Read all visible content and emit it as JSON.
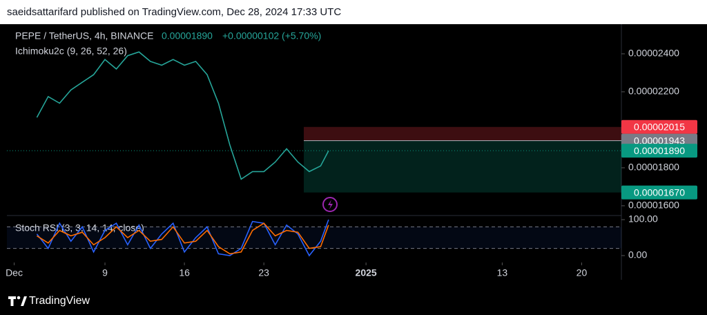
{
  "header": "saeidsattarifard published on TradingView.com, Dec 28, 2024 17:33 UTC",
  "footer": {
    "brand": "TradingView"
  },
  "chart_data": [
    {
      "type": "line",
      "title": "PEPE / TetherUS, 4h, BINANCE",
      "last": "0.00001890",
      "change": "+0.00000102 (+5.70%)",
      "indicator": "Ichimoku2c (9, 26, 52, 26)",
      "x": [
        3,
        4,
        5,
        6,
        7,
        8,
        9,
        10,
        11,
        12,
        13,
        14,
        15,
        16,
        17,
        18,
        19,
        20,
        21,
        22,
        23,
        24,
        25,
        26,
        27,
        28,
        28.7
      ],
      "series": [
        {
          "color": "#26a69a",
          "values": [
            2.065e-05,
            2.175e-05,
            2.14e-05,
            2.21e-05,
            2.25e-05,
            2.29e-05,
            2.37e-05,
            2.32e-05,
            2.39e-05,
            2.41e-05,
            2.36e-05,
            2.34e-05,
            2.37e-05,
            2.34e-05,
            2.36e-05,
            2.29e-05,
            2.14e-05,
            1.92e-05,
            1.74e-05,
            1.78e-05,
            1.78e-05,
            1.83e-05,
            1.9e-05,
            1.83e-05,
            1.78e-05,
            1.81e-05,
            1.89e-05
          ]
        }
      ],
      "xlim": [
        0.36,
        54.5
      ],
      "xticks": [
        {
          "value": 1,
          "label": "Dec"
        },
        9,
        16,
        23,
        {
          "value": 32,
          "label": "2025"
        },
        {
          "value": 44,
          "label": "13"
        },
        {
          "value": 51,
          "label": "20"
        }
      ],
      "ylim": [
        1.556e-05,
        2.556e-05
      ],
      "yticks": [
        {
          "value": 2.4e-05,
          "label": "0.00002400"
        },
        {
          "value": 2.2e-05,
          "label": "0.00002200"
        },
        {
          "value": 1.8e-05,
          "label": "0.00001800"
        },
        {
          "value": 1.6e-05,
          "label": "0.00001600"
        }
      ],
      "price_labels": [
        {
          "value": 2.015e-05,
          "label": "0.00002015",
          "color": "#f23645"
        },
        {
          "value": 1.943e-05,
          "label": "0.00001943",
          "color": "#787b86"
        },
        {
          "value": 1.89e-05,
          "label": "0.00001890",
          "color": "#089981"
        },
        {
          "value": 1.67e-05,
          "label": "0.00001670",
          "color": "#089981"
        }
      ]
    },
    {
      "type": "line",
      "title": "Stoch RSI (3, 3, 14, 14, close)",
      "x": [
        3,
        4,
        5,
        6,
        7,
        8,
        9,
        10,
        11,
        12,
        13,
        14,
        15,
        16,
        17,
        18,
        19,
        20,
        21,
        22,
        23,
        24,
        25,
        26,
        27,
        28,
        28.7
      ],
      "series": [
        {
          "color": "#2962ff",
          "values": [
            60,
            20,
            90,
            40,
            80,
            10,
            70,
            90,
            30,
            85,
            20,
            60,
            90,
            10,
            50,
            80,
            5,
            0,
            20,
            95,
            90,
            30,
            85,
            60,
            0,
            40,
            100
          ]
        },
        {
          "color": "#ff6d00",
          "values": [
            55,
            35,
            70,
            55,
            65,
            30,
            50,
            80,
            50,
            70,
            40,
            45,
            80,
            35,
            40,
            70,
            25,
            5,
            10,
            70,
            90,
            55,
            70,
            65,
            20,
            25,
            85
          ]
        }
      ],
      "xlim": [
        0.36,
        54.5
      ],
      "ylim": [
        -19.2,
        111.5
      ],
      "yticks": [
        {
          "value": 100,
          "label": "100.00"
        },
        {
          "value": 0,
          "label": "0.00"
        }
      ],
      "bands": [
        80,
        20
      ]
    }
  ]
}
